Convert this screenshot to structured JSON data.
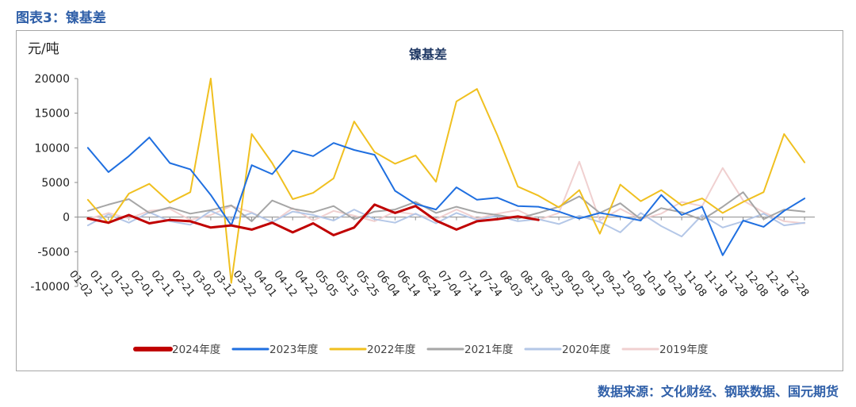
{
  "figure_title": "图表3：镍基差",
  "source": "数据来源：文化财经、钢联数据、国元期货",
  "chart_data": {
    "type": "line",
    "title": "镍基差",
    "ylabel": "元/吨",
    "ylim": [
      -10000,
      20000
    ],
    "yticks": [
      20000,
      15000,
      10000,
      5000,
      0,
      -5000,
      -10000
    ],
    "x": [
      "01-02",
      "01-12",
      "01-22",
      "02-01",
      "02-11",
      "02-21",
      "03-02",
      "03-12",
      "03-22",
      "04-01",
      "04-12",
      "04-22",
      "05-05",
      "05-15",
      "05-25",
      "06-04",
      "06-14",
      "06-24",
      "07-04",
      "07-14",
      "07-24",
      "08-03",
      "08-13",
      "08-23",
      "09-02",
      "09-12",
      "09-22",
      "10-09",
      "10-19",
      "10-29",
      "11-08",
      "11-18",
      "11-28",
      "12-08",
      "12-18",
      "12-28"
    ],
    "legend_position": "bottom",
    "grid": false,
    "series": [
      {
        "name": "2024年度",
        "color": "#c00000",
        "width": 3,
        "values": [
          -200,
          -800,
          300,
          -900,
          -400,
          -600,
          -1500,
          -1200,
          -1800,
          -800,
          -2200,
          -900,
          -2600,
          -1500,
          1800,
          600,
          1600,
          -500,
          -1800,
          -600,
          -300,
          100,
          -400,
          null,
          null,
          null,
          null,
          null,
          null,
          null,
          null,
          null,
          null,
          null,
          null,
          null
        ]
      },
      {
        "name": "2023年度",
        "color": "#1f6fe0",
        "width": 2,
        "values": [
          10000,
          6500,
          8800,
          11500,
          7800,
          6900,
          3200,
          -1200,
          7500,
          6200,
          9600,
          8800,
          10700,
          9700,
          9000,
          3800,
          1900,
          1100,
          4300,
          2500,
          2800,
          1600,
          1500,
          800,
          -200,
          600,
          100,
          -500,
          3200,
          300,
          1500,
          -5500,
          -500,
          -1400,
          900,
          2700
        ]
      },
      {
        "name": "2022年度",
        "color": "#f0c020",
        "width": 2,
        "values": [
          2500,
          -900,
          3400,
          4800,
          2100,
          3600,
          20000,
          -9500,
          12000,
          7800,
          2600,
          3500,
          5600,
          13800,
          9400,
          7700,
          8900,
          5100,
          16700,
          18500,
          11800,
          4400,
          3100,
          1400,
          3900,
          -2400,
          4700,
          2300,
          3900,
          1700,
          2700,
          600,
          2200,
          3600,
          12000,
          7900
        ]
      },
      {
        "name": "2021年度",
        "color": "#a6a6a6",
        "width": 2,
        "values": [
          900,
          1800,
          2600,
          600,
          1400,
          500,
          1000,
          1700,
          -600,
          2400,
          1200,
          700,
          1600,
          -300,
          800,
          1100,
          2200,
          600,
          1500,
          700,
          300,
          -200,
          600,
          1500,
          3000,
          600,
          2000,
          -300,
          1300,
          700,
          -400,
          1500,
          3600,
          -300,
          1100,
          800
        ]
      },
      {
        "name": "2020年度",
        "color": "#b4c7e7",
        "width": 2,
        "values": [
          -1200,
          400,
          -800,
          700,
          -600,
          -1100,
          900,
          -400,
          600,
          -700,
          800,
          300,
          -500,
          1100,
          -300,
          -800,
          500,
          -900,
          600,
          -400,
          200,
          -600,
          -300,
          -1000,
          200,
          -700,
          -2200,
          600,
          -1300,
          -2800,
          300,
          -1500,
          -600,
          500,
          -1200,
          -800
        ]
      },
      {
        "name": "2019年度",
        "color": "#f0d0d0",
        "width": 2,
        "values": [
          -300,
          600,
          -200,
          900,
          1200,
          -400,
          300,
          1600,
          700,
          -800,
          1300,
          -500,
          900,
          200,
          -600,
          800,
          400,
          -300,
          1100,
          -200,
          500,
          1000,
          -400,
          600,
          8000,
          -500,
          1200,
          -300,
          500,
          2200,
          1600,
          7100,
          2400,
          700,
          -600,
          -900
        ]
      }
    ]
  }
}
